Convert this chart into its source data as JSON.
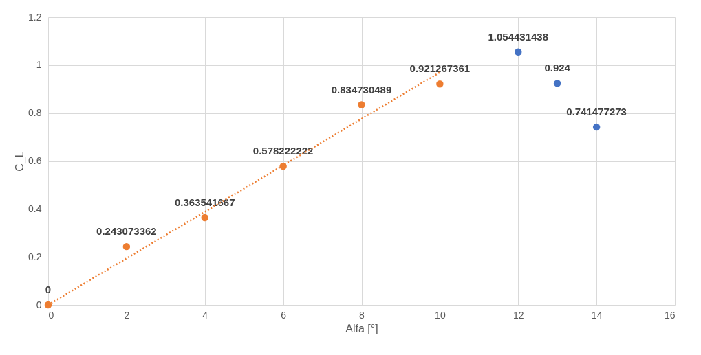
{
  "chart_data": {
    "type": "scatter",
    "xlabel": "Alfa [°]",
    "ylabel": "C_L",
    "xlim": [
      0,
      16
    ],
    "xticks": [
      0,
      2,
      4,
      6,
      8,
      10,
      12,
      14,
      16
    ],
    "ylim": [
      0,
      1.2
    ],
    "yticks": [
      0,
      0.2,
      0.4,
      0.6,
      0.8,
      1,
      1.2
    ],
    "grid": true,
    "marker": "circle",
    "series": [
      {
        "color": "#ed7d31",
        "x": [
          0,
          2,
          4,
          6,
          8,
          10
        ],
        "values": [
          0,
          0.243073362,
          0.363541667,
          0.578222222,
          0.834730489,
          0.921267361
        ],
        "value_labels": [
          "0",
          "0.243073362",
          "0.363541667",
          "0.578222222",
          "0.834730489",
          "0.921267361"
        ]
      },
      {
        "color": "#4472c4",
        "x": [
          12,
          13,
          14
        ],
        "values": [
          1.054431438,
          0.924,
          0.741477273
        ],
        "value_labels": [
          "1.054431438",
          "0.924",
          "0.741477273"
        ]
      },
      {
        "type": "line",
        "color": "#ed7d31",
        "line_style": "dotted",
        "marker": "none",
        "x": [
          0,
          10
        ],
        "values": [
          0,
          0.97
        ]
      }
    ]
  }
}
